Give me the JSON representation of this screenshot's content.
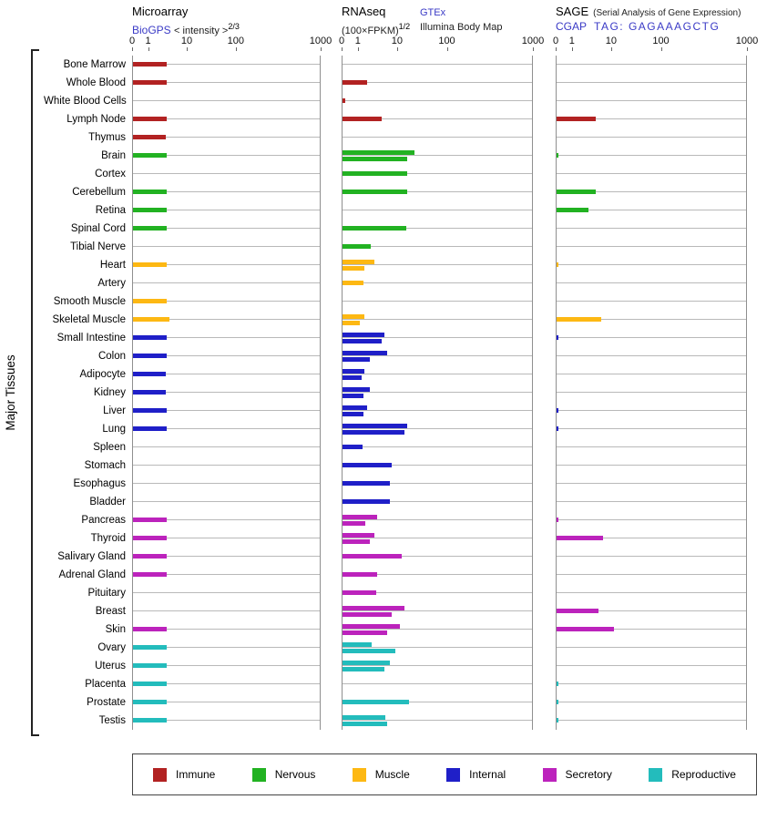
{
  "y_axis_label": "Major Tissues",
  "panels": {
    "microarray": {
      "title": "Microarray",
      "link": "BioGPS",
      "subtitle": "< intensity >",
      "exponent": "2/3"
    },
    "rnaseq": {
      "title": "RNAseq",
      "subtitle": "(100×FPKM)",
      "exponent": "1/2",
      "link": "GTEx",
      "link2": "Illumina Body Map"
    },
    "sage": {
      "title": "SAGE",
      "note": "(Serial Analysis of Gene Expression)",
      "link": "CGAP",
      "tag": "TAG: GAGAAAGCTG"
    }
  },
  "category_colors": {
    "Immune": "#b22222",
    "Nervous": "#22b222",
    "Muscle": "#fdb813",
    "Internal": "#1f1fc8",
    "Secretory": "#bc23bc",
    "Reproductive": "#23bcbc"
  },
  "legend": {
    "items": [
      "Immune",
      "Nervous",
      "Muscle",
      "Internal",
      "Secretory",
      "Reproductive"
    ]
  },
  "chart_data": {
    "type": "bar",
    "orientation": "horizontal",
    "x_scale_note": "power-transformed pseudo-log axis; anchors map axis values to width fractions",
    "axis_ticks": [
      "0",
      "1",
      "10",
      "100",
      "1000"
    ],
    "axis_anchors": {
      "values": [
        0,
        1,
        10,
        100,
        1000
      ],
      "fractions": [
        0,
        0.085,
        0.29,
        0.55,
        1
      ]
    },
    "tissues": [
      "Bone Marrow",
      "Whole Blood",
      "White Blood Cells",
      "Lymph Node",
      "Thymus",
      "Brain",
      "Cortex",
      "Cerebellum",
      "Retina",
      "Spinal Cord",
      "Tibial Nerve",
      "Heart",
      "Artery",
      "Smooth Muscle",
      "Skeletal Muscle",
      "Small Intestine",
      "Colon",
      "Adipocyte",
      "Kidney",
      "Liver",
      "Lung",
      "Spleen",
      "Stomach",
      "Esophagus",
      "Bladder",
      "Pancreas",
      "Thyroid",
      "Salivary Gland",
      "Adrenal Gland",
      "Pituitary",
      "Breast",
      "Skin",
      "Ovary",
      "Uterus",
      "Placenta",
      "Prostate",
      "Testis"
    ],
    "categories": [
      "Immune",
      "Immune",
      "Immune",
      "Immune",
      "Immune",
      "Nervous",
      "Nervous",
      "Nervous",
      "Nervous",
      "Nervous",
      "Nervous",
      "Muscle",
      "Muscle",
      "Muscle",
      "Muscle",
      "Internal",
      "Internal",
      "Internal",
      "Internal",
      "Internal",
      "Internal",
      "Internal",
      "Internal",
      "Internal",
      "Internal",
      "Secretory",
      "Secretory",
      "Secretory",
      "Secretory",
      "Secretory",
      "Secretory",
      "Secretory",
      "Reproductive",
      "Reproductive",
      "Reproductive",
      "Reproductive",
      "Reproductive"
    ],
    "series": [
      {
        "name": "Microarray BioGPS",
        "values": [
          3,
          3,
          null,
          3,
          2.8,
          3,
          null,
          3,
          3,
          3,
          null,
          3,
          null,
          3,
          3.5,
          3,
          3,
          2.8,
          2.8,
          3,
          3,
          null,
          null,
          null,
          null,
          3,
          3,
          3,
          3,
          null,
          null,
          3,
          3,
          3,
          3,
          3,
          3
        ]
      },
      {
        "name": "RNAseq GTEx",
        "values": [
          null,
          1.7,
          0.15,
          4,
          null,
          22,
          16,
          16,
          null,
          15,
          2,
          2.5,
          1.3,
          null,
          1.4,
          4.5,
          5.5,
          1.4,
          1.9,
          1.7,
          16,
          1.25,
          7,
          6.5,
          6.5,
          3,
          2.5,
          12,
          3,
          2.8,
          14,
          11,
          2.2,
          6.5,
          null,
          17,
          5
        ]
      },
      {
        "name": "RNAseq Illumina Body Map",
        "values": [
          null,
          null,
          null,
          null,
          null,
          16,
          null,
          null,
          null,
          null,
          null,
          1.4,
          null,
          null,
          1.1,
          4,
          1.9,
          1.2,
          1.3,
          1.3,
          14,
          null,
          null,
          null,
          null,
          1.5,
          1.9,
          null,
          null,
          null,
          7,
          5.5,
          9,
          4.5,
          null,
          null,
          5.5
        ]
      },
      {
        "name": "SAGE",
        "values": [
          null,
          null,
          null,
          4,
          null,
          0.1,
          null,
          4,
          2.5,
          null,
          null,
          0.1,
          null,
          null,
          5.5,
          0.1,
          null,
          null,
          null,
          0.1,
          0.1,
          null,
          null,
          null,
          null,
          0.1,
          6,
          null,
          null,
          null,
          4.5,
          11,
          null,
          null,
          0.1,
          0.1,
          0.1
        ]
      }
    ]
  }
}
